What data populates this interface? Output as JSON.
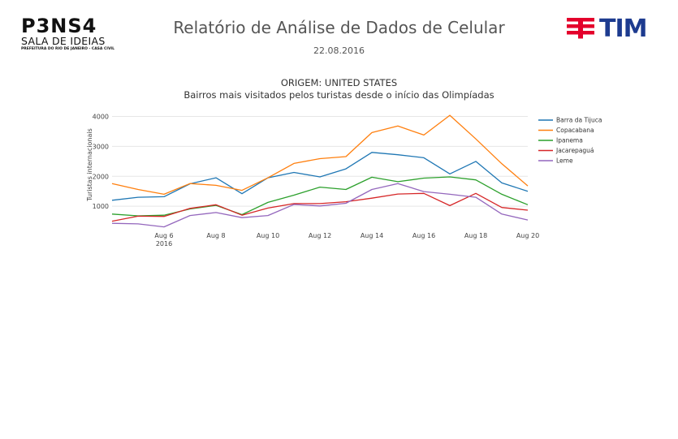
{
  "header": {
    "logo_left": {
      "line1": "P3NS4",
      "line2": "SALA DE IDEIAS",
      "line3": "PREFEITURA DO RIO DE JANEIRO - CASA CIVIL"
    },
    "title": "Relatório de Análise de Dados de Celular",
    "date": "22.08.2016",
    "logo_right": {
      "word": "TIM"
    }
  },
  "colors": {
    "blue": "#1f77b4",
    "orange": "#ff7f0e",
    "green": "#2ca02c",
    "red": "#d62728",
    "purple": "#9467bd",
    "tim_red": "#e4002b",
    "tim_blue": "#1d3b8f"
  },
  "chart_data": {
    "type": "line",
    "title": "ORIGEM: UNITED STATES",
    "subtitle": "Bairros mais visitados pelos turistas desde o início das Olimpíadas",
    "xlabel": "",
    "ylabel": "Turistas internacionais",
    "x": [
      "2016-08-04",
      "2016-08-05",
      "2016-08-06",
      "2016-08-07",
      "2016-08-08",
      "2016-08-09",
      "2016-08-10",
      "2016-08-11",
      "2016-08-12",
      "2016-08-13",
      "2016-08-14",
      "2016-08-15",
      "2016-08-16",
      "2016-08-17",
      "2016-08-18",
      "2016-08-19",
      "2016-08-20"
    ],
    "x_ticks": [
      {
        "date": "2016-08-06",
        "label": "Aug 6",
        "sublabel": "2016"
      },
      {
        "date": "2016-08-08",
        "label": "Aug 8",
        "sublabel": ""
      },
      {
        "date": "2016-08-10",
        "label": "Aug 10",
        "sublabel": ""
      },
      {
        "date": "2016-08-12",
        "label": "Aug 12",
        "sublabel": ""
      },
      {
        "date": "2016-08-14",
        "label": "Aug 14",
        "sublabel": ""
      },
      {
        "date": "2016-08-16",
        "label": "Aug 16",
        "sublabel": ""
      },
      {
        "date": "2016-08-18",
        "label": "Aug 18",
        "sublabel": ""
      },
      {
        "date": "2016-08-20",
        "label": "Aug 20",
        "sublabel": ""
      }
    ],
    "y_ticks": [
      1000,
      2000,
      3000,
      4000
    ],
    "ylim": [
      300,
      4150
    ],
    "grid": true,
    "legend_position": "right",
    "series": [
      {
        "name": "Barra da Tijuca",
        "color": "#1f77b4",
        "values": [
          1200,
          1300,
          1320,
          1750,
          1950,
          1420,
          1950,
          2130,
          1980,
          2250,
          2800,
          2720,
          2620,
          2080,
          2500,
          1780,
          1500
        ]
      },
      {
        "name": "Copacabana",
        "color": "#ff7f0e",
        "values": [
          1760,
          1560,
          1400,
          1760,
          1700,
          1530,
          1950,
          2430,
          2590,
          2660,
          3460,
          3680,
          3380,
          4040,
          3250,
          2420,
          1680
        ]
      },
      {
        "name": "Ipanema",
        "color": "#2ca02c",
        "values": [
          740,
          680,
          700,
          910,
          1030,
          720,
          1130,
          1370,
          1640,
          1560,
          1970,
          1820,
          1940,
          1980,
          1880,
          1400,
          1050
        ]
      },
      {
        "name": "Jacarepaguá",
        "color": "#d62728",
        "values": [
          500,
          670,
          660,
          930,
          1050,
          700,
          940,
          1090,
          1090,
          1150,
          1270,
          1410,
          1430,
          1020,
          1430,
          960,
          870
        ]
      },
      {
        "name": "Leme",
        "color": "#9467bd",
        "values": [
          430,
          410,
          310,
          690,
          790,
          620,
          690,
          1060,
          1010,
          1100,
          1560,
          1760,
          1490,
          1400,
          1300,
          740,
          540
        ]
      }
    ]
  }
}
